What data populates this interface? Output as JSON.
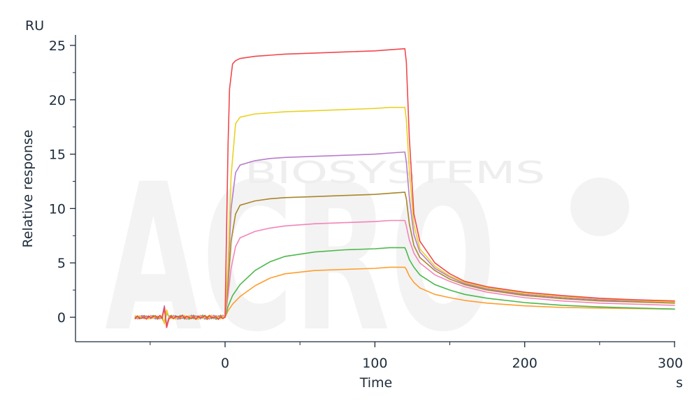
{
  "watermark": {
    "logo_text": "ACRO",
    "sub_text": "BIOSYSTEMS"
  },
  "chart_data": {
    "type": "line",
    "title": "",
    "xlabel": "Time",
    "ylabel": "Relative response",
    "x_unit": "s",
    "y_unit": "RU",
    "xlim": [
      -100,
      300
    ],
    "ylim": [
      -2.3,
      26
    ],
    "x_ticks": [
      0,
      100,
      200,
      300
    ],
    "y_ticks": [
      0,
      5,
      10,
      15,
      20,
      25
    ],
    "grid": false,
    "legend": "none",
    "assoc_start": 0,
    "dissoc_start": 120,
    "series": [
      {
        "color": "#ff9e2c",
        "values_desc": "lowest",
        "baseline_start": -60,
        "x": [
          0,
          2,
          5,
          10,
          20,
          30,
          40,
          60,
          80,
          100,
          110,
          120,
          121,
          123,
          126,
          130,
          140,
          150,
          160,
          175,
          200,
          225,
          250,
          275,
          300
        ],
        "y": [
          0,
          0.6,
          1.2,
          1.9,
          2.9,
          3.6,
          4.0,
          4.3,
          4.4,
          4.5,
          4.6,
          4.6,
          4.4,
          3.8,
          3.2,
          2.7,
          2.1,
          1.8,
          1.55,
          1.3,
          1.05,
          0.9,
          0.85,
          0.8,
          0.75
        ]
      },
      {
        "color": "#4cb84a",
        "x": [
          0,
          2,
          5,
          10,
          20,
          30,
          40,
          60,
          80,
          100,
          110,
          120,
          121,
          123,
          126,
          130,
          140,
          150,
          160,
          175,
          200,
          225,
          250,
          275,
          300
        ],
        "y": [
          0,
          1.0,
          2.0,
          3.0,
          4.3,
          5.1,
          5.6,
          6.0,
          6.2,
          6.3,
          6.4,
          6.4,
          6.1,
          5.3,
          4.6,
          3.9,
          3.0,
          2.5,
          2.1,
          1.75,
          1.35,
          1.1,
          0.95,
          0.85,
          0.75
        ]
      },
      {
        "color": "#f285b8",
        "x": [
          0,
          2,
          4,
          7,
          10,
          20,
          30,
          40,
          60,
          80,
          100,
          110,
          120,
          121,
          123,
          126,
          130,
          140,
          150,
          160,
          175,
          200,
          225,
          250,
          275,
          300
        ],
        "y": [
          0,
          2.0,
          4.5,
          6.5,
          7.3,
          7.9,
          8.2,
          8.4,
          8.6,
          8.7,
          8.8,
          8.9,
          8.9,
          8.4,
          7.1,
          5.9,
          5.0,
          3.9,
          3.3,
          2.8,
          2.3,
          1.8,
          1.5,
          1.3,
          1.2,
          1.1
        ]
      },
      {
        "color": "#a8862b",
        "x": [
          0,
          2,
          4,
          7,
          10,
          20,
          30,
          40,
          60,
          80,
          100,
          110,
          120,
          121,
          123,
          126,
          130,
          140,
          150,
          160,
          175,
          200,
          225,
          250,
          275,
          300
        ],
        "y": [
          0,
          3.0,
          7.0,
          9.5,
          10.3,
          10.7,
          10.9,
          11.0,
          11.1,
          11.2,
          11.3,
          11.4,
          11.5,
          10.9,
          8.6,
          6.6,
          5.5,
          4.3,
          3.5,
          3.0,
          2.5,
          2.0,
          1.7,
          1.5,
          1.4,
          1.3
        ]
      },
      {
        "color": "#b87ccc",
        "x": [
          0,
          2,
          4,
          7,
          10,
          20,
          30,
          40,
          60,
          80,
          100,
          110,
          120,
          121,
          123,
          126,
          130,
          140,
          150,
          160,
          175,
          200,
          225,
          250,
          275,
          300
        ],
        "y": [
          0,
          4.0,
          10.0,
          13.3,
          14.0,
          14.4,
          14.6,
          14.7,
          14.8,
          14.9,
          15.0,
          15.1,
          15.2,
          14.3,
          11.0,
          7.6,
          6.0,
          4.5,
          3.7,
          3.1,
          2.6,
          2.1,
          1.8,
          1.6,
          1.5,
          1.4
        ]
      },
      {
        "color": "#e8d226",
        "x": [
          0,
          2,
          4,
          7,
          10,
          20,
          30,
          40,
          60,
          80,
          100,
          110,
          120,
          121,
          123,
          126,
          130,
          140,
          150,
          160,
          175,
          200,
          225,
          250,
          275,
          300
        ],
        "y": [
          0,
          5.0,
          13.0,
          17.8,
          18.4,
          18.7,
          18.8,
          18.9,
          19.0,
          19.1,
          19.2,
          19.3,
          19.3,
          18.2,
          13.5,
          8.5,
          6.3,
          4.7,
          3.8,
          3.2,
          2.7,
          2.2,
          1.9,
          1.7,
          1.55,
          1.4
        ]
      },
      {
        "color": "#f0484d",
        "x": [
          0,
          1,
          2,
          3,
          5,
          7,
          10,
          20,
          30,
          40,
          60,
          80,
          100,
          110,
          120,
          121,
          123,
          126,
          130,
          140,
          150,
          160,
          175,
          200,
          225,
          250,
          275,
          300
        ],
        "y": [
          0,
          8.0,
          16.0,
          21.0,
          23.3,
          23.6,
          23.8,
          24.0,
          24.1,
          24.2,
          24.3,
          24.4,
          24.5,
          24.6,
          24.7,
          23.5,
          16.5,
          9.5,
          7.0,
          5.0,
          4.0,
          3.3,
          2.8,
          2.3,
          2.0,
          1.75,
          1.6,
          1.5
        ]
      }
    ]
  }
}
